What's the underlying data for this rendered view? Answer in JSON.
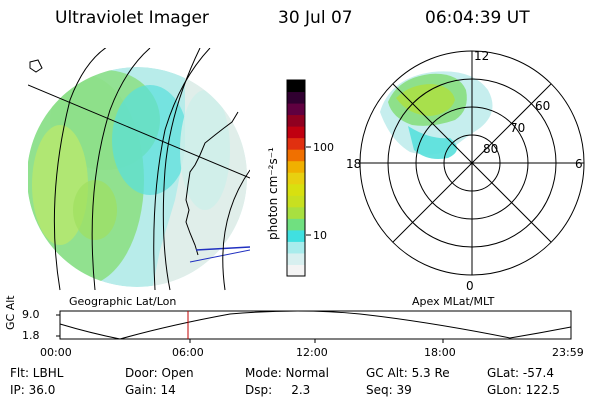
{
  "header": {
    "title": "Ultraviolet Imager",
    "date": "30 Jul 07",
    "time": "06:04:39 UT"
  },
  "colorbar": {
    "unit_label": "photon cm⁻²s⁻¹",
    "tick_labels": [
      "100",
      "10"
    ],
    "colors": [
      "#f4f4f4",
      "#d8f0f0",
      "#a8ecec",
      "#40e0e0",
      "#70e080",
      "#a8e040",
      "#c8e020",
      "#d8e010",
      "#e8d010",
      "#f0b000",
      "#f07000",
      "#e03010",
      "#c00010",
      "#900020",
      "#600040",
      "#300030",
      "#000000"
    ]
  },
  "left_panel": {
    "label": "Geographic Lat/Lon"
  },
  "polar_plot": {
    "label": "Apex MLat/MLT",
    "mlt_labels": {
      "top": "12",
      "right": "6",
      "bottom": "0",
      "left": "18"
    },
    "lat_labels": [
      "60",
      "70",
      "80"
    ]
  },
  "altitude_plot": {
    "ylabel": "GC Alt",
    "y_ticks": [
      "9.0",
      "1.8"
    ],
    "x_ticks": [
      "00:00",
      "06:00",
      "12:00",
      "18:00",
      "23:59"
    ]
  },
  "info": {
    "flt": "Flt: LBHL",
    "ip": "IP: 36.0",
    "door": "Door: Open",
    "gain": "Gain: 14",
    "mode": "Mode: Normal",
    "dsp": "Dsp:     2.3",
    "gc_alt": "GC Alt: 5.3 Re",
    "seq": "Seq: 39",
    "glat": "GLat: -57.4",
    "glon": "GLon: 122.5"
  }
}
